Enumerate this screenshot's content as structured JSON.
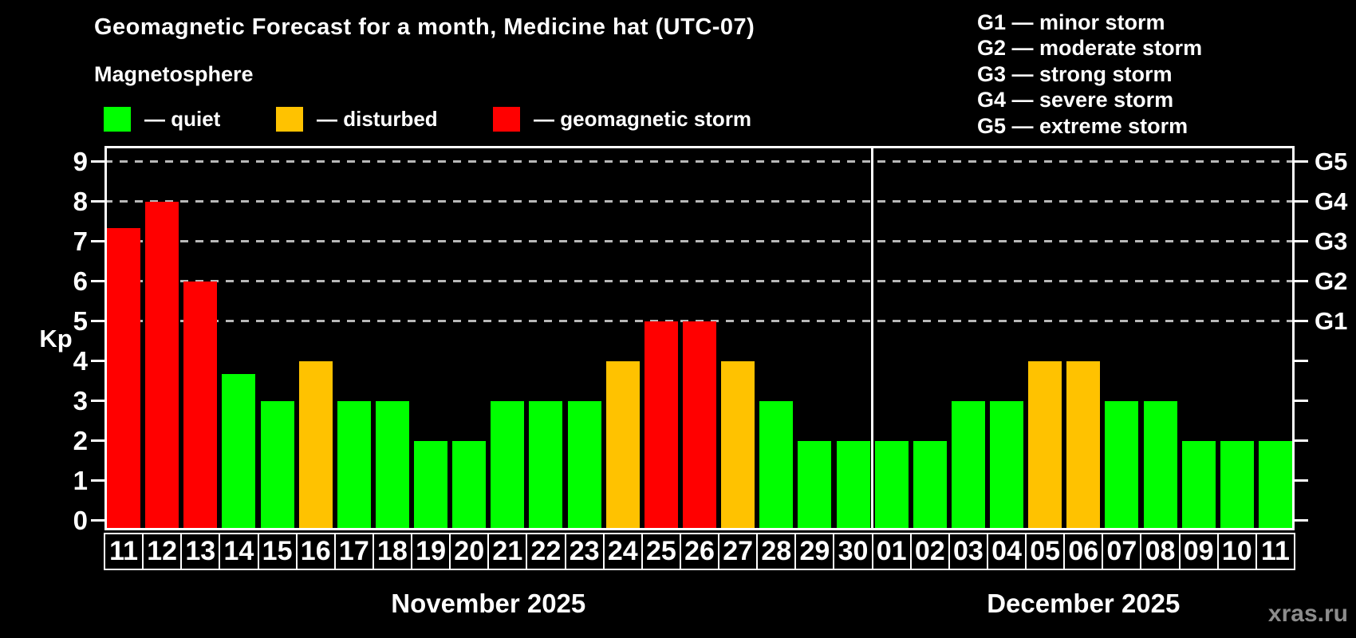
{
  "title": "Geomagnetic Forecast for a month, Medicine hat (UTC-07)",
  "subtitle": "Magnetosphere",
  "legend": {
    "items": [
      {
        "key": "quiet",
        "label": "— quiet",
        "color": "#00ff00",
        "x": 130
      },
      {
        "key": "disturbed",
        "label": "— disturbed",
        "color": "#ffc200",
        "x": 346
      },
      {
        "key": "storm",
        "label": "— geomagnetic storm",
        "color": "#ff0000",
        "x": 618
      }
    ]
  },
  "g_legend": {
    "items": [
      {
        "label": "G1 — minor storm"
      },
      {
        "label": "G2 — moderate storm"
      },
      {
        "label": "G3 — strong storm"
      },
      {
        "label": "G4 — severe storm"
      },
      {
        "label": "G5 — extreme storm"
      }
    ]
  },
  "watermark": "xras.ru",
  "chart_data": {
    "type": "bar",
    "title": "Geomagnetic Forecast for a month, Medicine hat (UTC-07)",
    "ylabel": "Kp",
    "ylim": [
      -0.3,
      9.4
    ],
    "yticks": [
      0,
      1,
      2,
      3,
      4,
      5,
      6,
      7,
      8,
      9
    ],
    "grid": "dashed horizontal lines at Kp 5-9 only",
    "legend_position": "top",
    "colors": {
      "quiet": "#00ff00",
      "disturbed": "#ffc200",
      "storm": "#ff0000"
    },
    "g_scale": [
      {
        "kp": 5,
        "label": "G1"
      },
      {
        "kp": 6,
        "label": "G2"
      },
      {
        "kp": 7,
        "label": "G3"
      },
      {
        "kp": 8,
        "label": "G4"
      },
      {
        "kp": 9,
        "label": "G5"
      }
    ],
    "months": [
      {
        "label": "November 2025",
        "days": [
          {
            "day": "11",
            "kp": 7.33,
            "condition": "storm"
          },
          {
            "day": "12",
            "kp": 8,
            "condition": "storm"
          },
          {
            "day": "13",
            "kp": 6,
            "condition": "storm"
          },
          {
            "day": "14",
            "kp": 3.67,
            "condition": "quiet"
          },
          {
            "day": "15",
            "kp": 3,
            "condition": "quiet"
          },
          {
            "day": "16",
            "kp": 4,
            "condition": "disturbed"
          },
          {
            "day": "17",
            "kp": 3,
            "condition": "quiet"
          },
          {
            "day": "18",
            "kp": 3,
            "condition": "quiet"
          },
          {
            "day": "19",
            "kp": 2,
            "condition": "quiet"
          },
          {
            "day": "20",
            "kp": 2,
            "condition": "quiet"
          },
          {
            "day": "21",
            "kp": 3,
            "condition": "quiet"
          },
          {
            "day": "22",
            "kp": 3,
            "condition": "quiet"
          },
          {
            "day": "23",
            "kp": 3,
            "condition": "quiet"
          },
          {
            "day": "24",
            "kp": 4,
            "condition": "disturbed"
          },
          {
            "day": "25",
            "kp": 5,
            "condition": "storm"
          },
          {
            "day": "26",
            "kp": 5,
            "condition": "storm"
          },
          {
            "day": "27",
            "kp": 4,
            "condition": "disturbed"
          },
          {
            "day": "28",
            "kp": 3,
            "condition": "quiet"
          },
          {
            "day": "29",
            "kp": 2,
            "condition": "quiet"
          },
          {
            "day": "30",
            "kp": 2,
            "condition": "quiet"
          }
        ]
      },
      {
        "label": "December 2025",
        "days": [
          {
            "day": "01",
            "kp": 2,
            "condition": "quiet"
          },
          {
            "day": "02",
            "kp": 2,
            "condition": "quiet"
          },
          {
            "day": "03",
            "kp": 3,
            "condition": "quiet"
          },
          {
            "day": "04",
            "kp": 3,
            "condition": "quiet"
          },
          {
            "day": "05",
            "kp": 4,
            "condition": "disturbed"
          },
          {
            "day": "06",
            "kp": 4,
            "condition": "disturbed"
          },
          {
            "day": "07",
            "kp": 3,
            "condition": "quiet"
          },
          {
            "day": "08",
            "kp": 3,
            "condition": "quiet"
          },
          {
            "day": "09",
            "kp": 2,
            "condition": "quiet"
          },
          {
            "day": "10",
            "kp": 2,
            "condition": "quiet"
          },
          {
            "day": "11",
            "kp": 2,
            "condition": "quiet"
          }
        ]
      }
    ]
  }
}
